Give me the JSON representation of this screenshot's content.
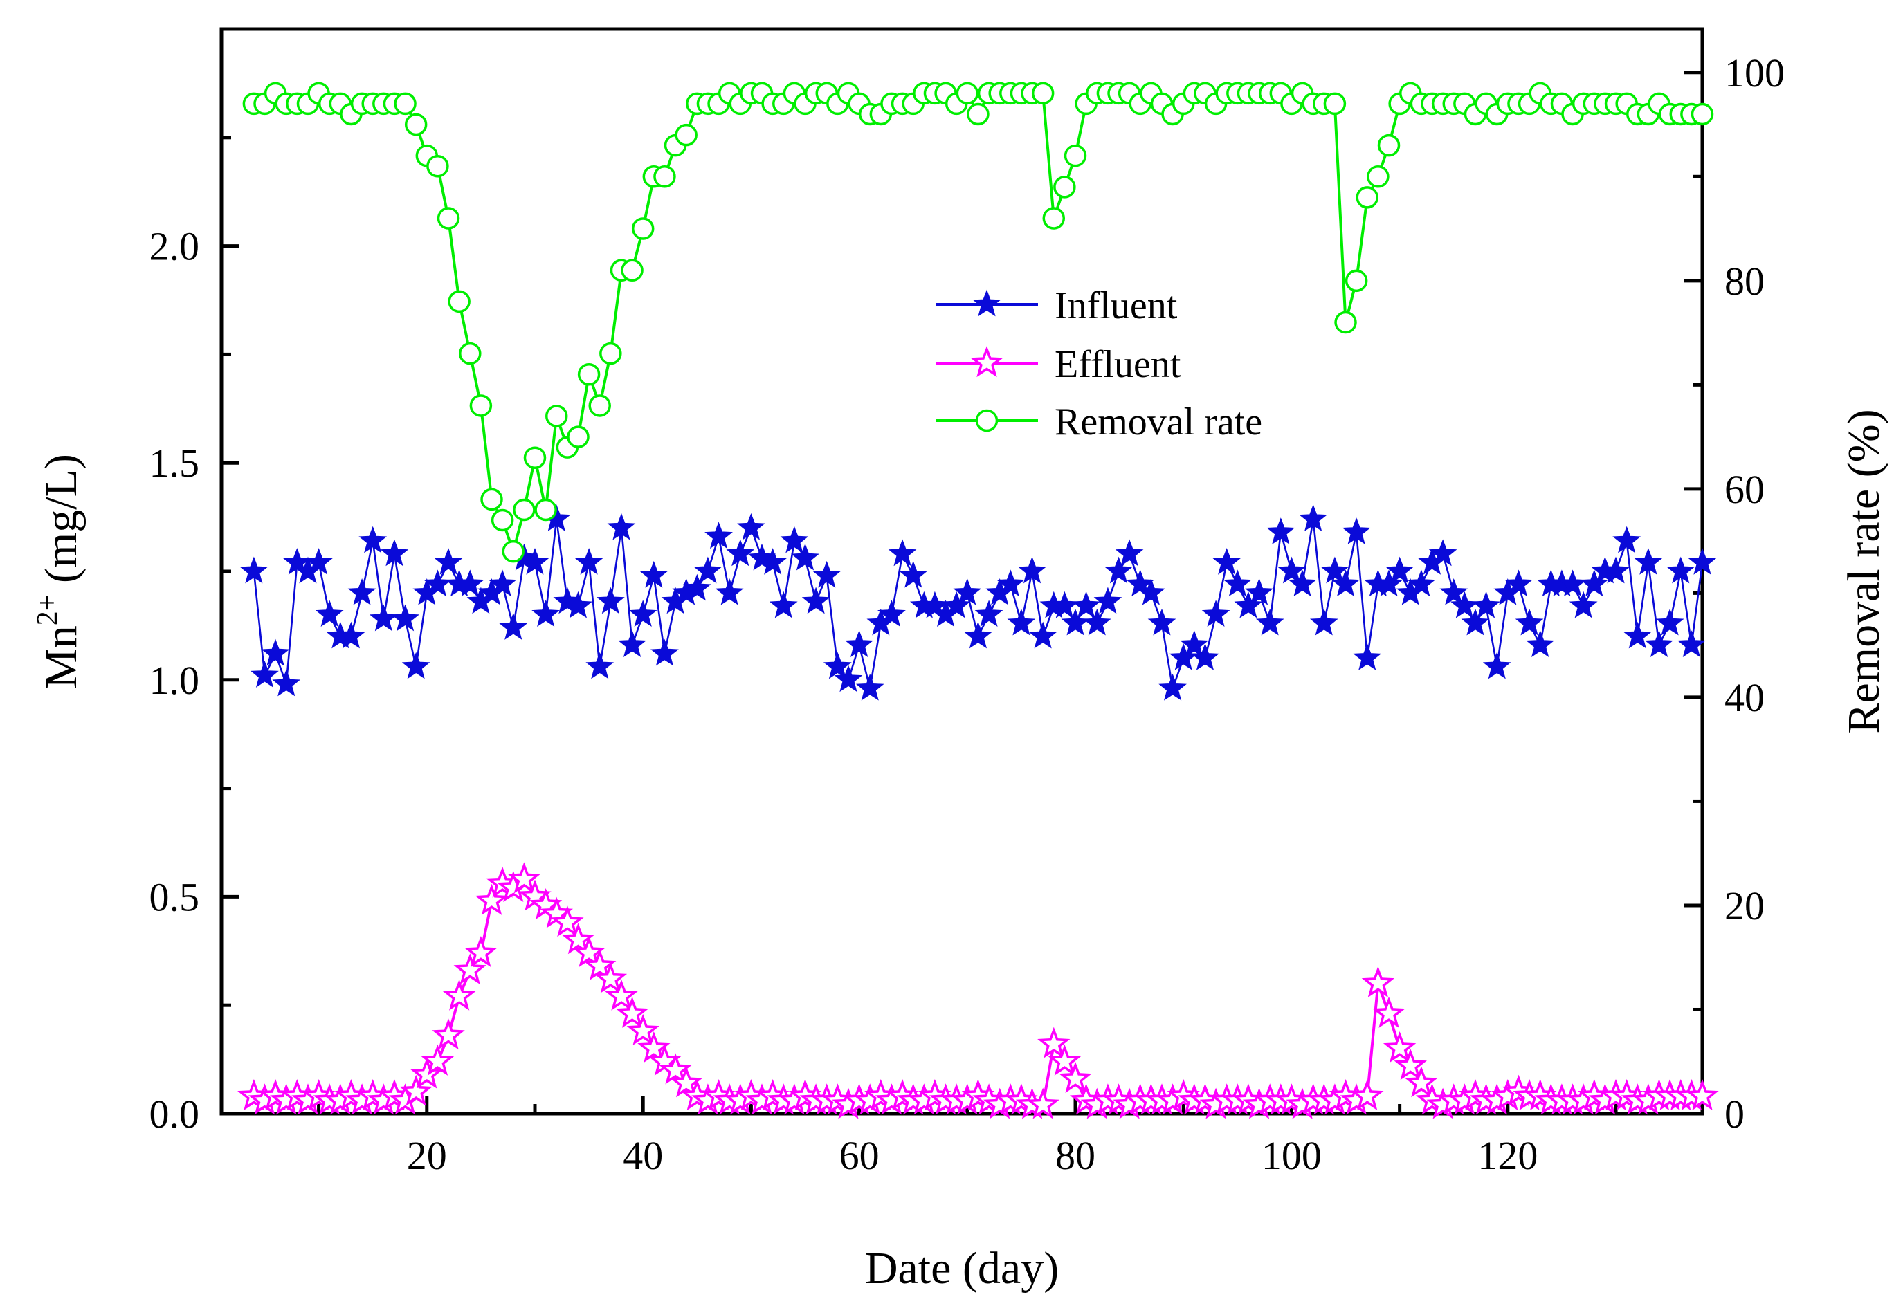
{
  "chart_data": {
    "type": "line",
    "xlabel": "Date  (day)",
    "ylabel_left_base": "Mn",
    "ylabel_left_sup": "2+",
    "ylabel_left_rest": " (mg/L)",
    "ylabel_right": "Removal rate (%)",
    "xlim": [
      1,
      138
    ],
    "ylim_left": [
      0,
      2.5
    ],
    "ylim_right": [
      0,
      104.17
    ],
    "x_ticks": [
      20,
      40,
      60,
      80,
      100,
      120
    ],
    "x_tick_labels": [
      "20",
      "40",
      "60",
      "80",
      "100",
      "120"
    ],
    "y_left_ticks": [
      0,
      0.5,
      1,
      1.5,
      2
    ],
    "y_left_tick_labels": [
      "0.0",
      "0.5",
      "1.0",
      "1.5",
      "2.0"
    ],
    "y_right_ticks": [
      0,
      20,
      40,
      60,
      80,
      100
    ],
    "y_right_tick_labels": [
      "0",
      "20",
      "40",
      "60",
      "80",
      "100"
    ],
    "grid": false,
    "legend_position": "center",
    "series": [
      {
        "name": "Influent",
        "axis": "left",
        "marker": "star-filled",
        "color": "#0a0ad8",
        "x": [
          4,
          5,
          6,
          7,
          8,
          9,
          10,
          11,
          12,
          13,
          14,
          15,
          16,
          17,
          18,
          19,
          20,
          21,
          22,
          23,
          24,
          25,
          26,
          27,
          28,
          29,
          30,
          31,
          32,
          33,
          34,
          35,
          36,
          37,
          38,
          39,
          40,
          41,
          42,
          43,
          44,
          45,
          46,
          47,
          48,
          49,
          50,
          51,
          52,
          53,
          54,
          55,
          56,
          57,
          58,
          59,
          60,
          61,
          62,
          63,
          64,
          65,
          66,
          67,
          68,
          69,
          70,
          71,
          72,
          73,
          74,
          75,
          76,
          77,
          78,
          79,
          80,
          81,
          82,
          83,
          84,
          85,
          86,
          87,
          88,
          89,
          90,
          91,
          92,
          93,
          94,
          95,
          96,
          97,
          98,
          99,
          100,
          101,
          102,
          103,
          104,
          105,
          106,
          107,
          108,
          109,
          110,
          111,
          112,
          113,
          114,
          115,
          116,
          117,
          118,
          119,
          120,
          121,
          122,
          123,
          124,
          125,
          126,
          127,
          128,
          129,
          130,
          131,
          132,
          133,
          134,
          135,
          136,
          137,
          138
        ],
        "values": [
          1.25,
          1.01,
          1.06,
          0.99,
          1.27,
          1.25,
          1.27,
          1.15,
          1.1,
          1.1,
          1.2,
          1.32,
          1.14,
          1.29,
          1.14,
          1.03,
          1.2,
          1.22,
          1.27,
          1.22,
          1.22,
          1.18,
          1.2,
          1.22,
          1.12,
          1.28,
          1.27,
          1.15,
          1.37,
          1.18,
          1.17,
          1.27,
          1.03,
          1.18,
          1.35,
          1.08,
          1.15,
          1.24,
          1.06,
          1.18,
          1.2,
          1.21,
          1.25,
          1.33,
          1.2,
          1.29,
          1.35,
          1.28,
          1.27,
          1.17,
          1.32,
          1.28,
          1.18,
          1.24,
          1.03,
          1.0,
          1.08,
          0.98,
          1.13,
          1.15,
          1.29,
          1.24,
          1.17,
          1.17,
          1.15,
          1.17,
          1.2,
          1.1,
          1.15,
          1.2,
          1.22,
          1.13,
          1.25,
          1.1,
          1.17,
          1.17,
          1.13,
          1.17,
          1.13,
          1.18,
          1.25,
          1.29,
          1.22,
          1.2,
          1.13,
          0.98,
          1.05,
          1.08,
          1.05,
          1.15,
          1.27,
          1.22,
          1.17,
          1.2,
          1.13,
          1.34,
          1.25,
          1.22,
          1.37,
          1.13,
          1.25,
          1.22,
          1.34,
          1.05,
          1.22,
          1.22,
          1.25,
          1.2,
          1.22,
          1.27,
          1.29,
          1.2,
          1.17,
          1.13,
          1.17,
          1.03,
          1.2,
          1.22,
          1.13,
          1.08,
          1.22,
          1.22,
          1.22,
          1.17,
          1.22,
          1.25,
          1.25,
          1.32,
          1.1,
          1.27,
          1.08,
          1.13,
          1.25,
          1.08,
          1.27
        ]
      },
      {
        "name": "Effluent",
        "axis": "left",
        "marker": "star-open",
        "color": "#ff00ff",
        "x": [
          4,
          5,
          6,
          7,
          8,
          9,
          10,
          11,
          12,
          13,
          14,
          15,
          16,
          17,
          18,
          19,
          20,
          21,
          22,
          23,
          24,
          25,
          26,
          27,
          28,
          29,
          30,
          31,
          32,
          33,
          34,
          35,
          36,
          37,
          38,
          39,
          40,
          41,
          42,
          43,
          44,
          45,
          46,
          47,
          48,
          49,
          50,
          51,
          52,
          53,
          54,
          55,
          56,
          57,
          58,
          59,
          60,
          61,
          62,
          63,
          64,
          65,
          66,
          67,
          68,
          69,
          70,
          71,
          72,
          73,
          74,
          75,
          76,
          77,
          78,
          79,
          80,
          81,
          82,
          83,
          84,
          85,
          86,
          87,
          88,
          89,
          90,
          91,
          92,
          93,
          94,
          95,
          96,
          97,
          98,
          99,
          100,
          101,
          102,
          103,
          104,
          105,
          106,
          107,
          108,
          109,
          110,
          111,
          112,
          113,
          114,
          115,
          116,
          117,
          118,
          119,
          120,
          121,
          122,
          123,
          124,
          125,
          126,
          127,
          128,
          129,
          130,
          131,
          132,
          133,
          134,
          135,
          136,
          137,
          138
        ],
        "values": [
          0.04,
          0.03,
          0.04,
          0.03,
          0.04,
          0.03,
          0.04,
          0.03,
          0.03,
          0.04,
          0.03,
          0.04,
          0.03,
          0.04,
          0.03,
          0.05,
          0.09,
          0.12,
          0.18,
          0.27,
          0.33,
          0.37,
          0.49,
          0.53,
          0.52,
          0.54,
          0.5,
          0.48,
          0.46,
          0.44,
          0.4,
          0.37,
          0.34,
          0.31,
          0.27,
          0.23,
          0.19,
          0.15,
          0.12,
          0.1,
          0.07,
          0.04,
          0.03,
          0.04,
          0.03,
          0.03,
          0.04,
          0.03,
          0.04,
          0.03,
          0.03,
          0.04,
          0.03,
          0.03,
          0.03,
          0.02,
          0.03,
          0.03,
          0.04,
          0.03,
          0.04,
          0.03,
          0.03,
          0.04,
          0.03,
          0.03,
          0.03,
          0.04,
          0.03,
          0.02,
          0.03,
          0.03,
          0.02,
          0.02,
          0.16,
          0.12,
          0.08,
          0.03,
          0.02,
          0.03,
          0.03,
          0.02,
          0.03,
          0.03,
          0.03,
          0.03,
          0.04,
          0.03,
          0.03,
          0.02,
          0.03,
          0.03,
          0.03,
          0.02,
          0.03,
          0.03,
          0.03,
          0.02,
          0.03,
          0.03,
          0.03,
          0.04,
          0.03,
          0.04,
          0.3,
          0.23,
          0.15,
          0.11,
          0.07,
          0.03,
          0.02,
          0.03,
          0.03,
          0.04,
          0.03,
          0.03,
          0.04,
          0.05,
          0.04,
          0.04,
          0.03,
          0.03,
          0.03,
          0.03,
          0.04,
          0.03,
          0.04,
          0.04,
          0.03,
          0.03,
          0.04,
          0.04,
          0.04,
          0.04,
          0.04
        ]
      },
      {
        "name": "Removal rate",
        "axis": "right",
        "marker": "circle-open",
        "color": "#00ee00",
        "x": [
          4,
          5,
          6,
          7,
          8,
          9,
          10,
          11,
          12,
          13,
          14,
          15,
          16,
          17,
          18,
          19,
          20,
          21,
          22,
          23,
          24,
          25,
          26,
          27,
          28,
          29,
          30,
          31,
          32,
          33,
          34,
          35,
          36,
          37,
          38,
          39,
          40,
          41,
          42,
          43,
          44,
          45,
          46,
          47,
          48,
          49,
          50,
          51,
          52,
          53,
          54,
          55,
          56,
          57,
          58,
          59,
          60,
          61,
          62,
          63,
          64,
          65,
          66,
          67,
          68,
          69,
          70,
          71,
          72,
          73,
          74,
          75,
          76,
          77,
          78,
          79,
          80,
          81,
          82,
          83,
          84,
          85,
          86,
          87,
          88,
          89,
          90,
          91,
          92,
          93,
          94,
          95,
          96,
          97,
          98,
          99,
          100,
          101,
          102,
          103,
          104,
          105,
          106,
          107,
          108,
          109,
          110,
          111,
          112,
          113,
          114,
          115,
          116,
          117,
          118,
          119,
          120,
          121,
          122,
          123,
          124,
          125,
          126,
          127,
          128,
          129,
          130,
          131,
          132,
          133,
          134,
          135,
          136,
          137,
          138
        ],
        "values": [
          97,
          97,
          98,
          97,
          97,
          97,
          98,
          97,
          97,
          96,
          97,
          97,
          97,
          97,
          97,
          95,
          92,
          91,
          86,
          78,
          73,
          68,
          59,
          57,
          54,
          58,
          63,
          58,
          67,
          64,
          65,
          71,
          68,
          73,
          81,
          81,
          85,
          90,
          90,
          93,
          94,
          97,
          97,
          97,
          98,
          97,
          98,
          98,
          97,
          97,
          98,
          97,
          98,
          98,
          97,
          98,
          97,
          96,
          96,
          97,
          97,
          97,
          98,
          98,
          98,
          97,
          98,
          96,
          98,
          98,
          98,
          98,
          98,
          98,
          86,
          89,
          92,
          97,
          98,
          98,
          98,
          98,
          97,
          98,
          97,
          96,
          97,
          98,
          98,
          97,
          98,
          98,
          98,
          98,
          98,
          98,
          97,
          98,
          97,
          97,
          97,
          76,
          80,
          88,
          90,
          93,
          97,
          98,
          97,
          97,
          97,
          97,
          97,
          96,
          97,
          96,
          97,
          97,
          97,
          98,
          97,
          97,
          96,
          97,
          97,
          97,
          97,
          97,
          96,
          96,
          97,
          96,
          96,
          96,
          96
        ]
      }
    ]
  }
}
